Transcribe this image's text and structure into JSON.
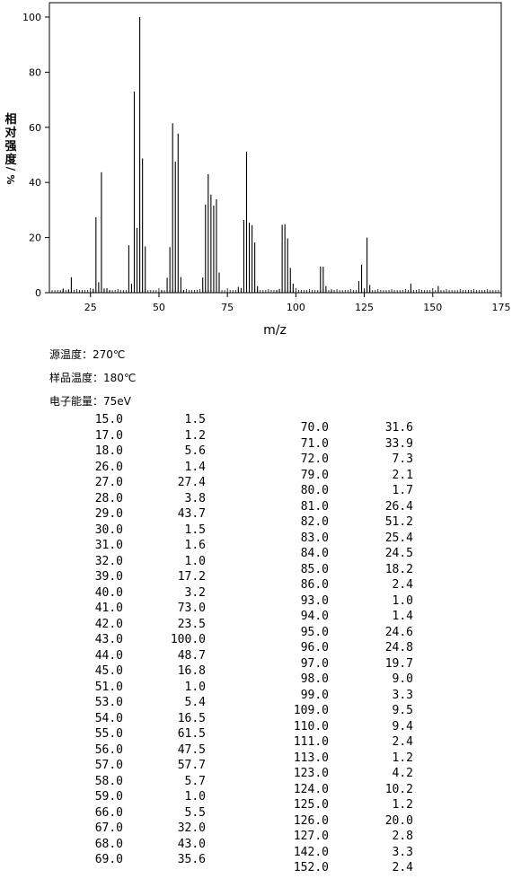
{
  "chart_data": {
    "type": "bar",
    "xlabel": "m/z",
    "ylabel": [
      "相",
      "对",
      "强",
      "度",
      "%"
    ],
    "ylabel_sep": "/",
    "xlim": [
      10,
      175
    ],
    "ylim": [
      0,
      100
    ],
    "xticks": [
      25,
      50,
      75,
      100,
      125,
      150,
      175
    ],
    "yticks": [
      0,
      20,
      40,
      60,
      80,
      100
    ],
    "x": [
      15,
      17,
      18,
      26,
      27,
      28,
      29,
      30,
      31,
      32,
      39,
      40,
      41,
      42,
      43,
      44,
      45,
      51,
      53,
      54,
      55,
      56,
      57,
      58,
      59,
      66,
      67,
      68,
      69,
      70,
      71,
      72,
      79,
      80,
      81,
      82,
      83,
      84,
      85,
      86,
      93,
      94,
      95,
      96,
      97,
      98,
      99,
      109,
      110,
      111,
      113,
      123,
      124,
      125,
      126,
      127,
      142,
      152
    ],
    "values": [
      1.5,
      1.2,
      5.6,
      1.4,
      27.4,
      3.8,
      43.7,
      1.5,
      1.6,
      1.0,
      17.2,
      3.2,
      73.0,
      23.5,
      100.0,
      48.7,
      16.8,
      1.0,
      5.4,
      16.5,
      61.5,
      47.5,
      57.7,
      5.7,
      1.0,
      5.5,
      32.0,
      43.0,
      35.6,
      31.6,
      33.9,
      7.3,
      2.1,
      1.7,
      26.4,
      51.2,
      25.4,
      24.5,
      18.2,
      2.4,
      1.0,
      1.4,
      24.6,
      24.8,
      19.7,
      9.0,
      3.3,
      9.5,
      9.4,
      2.4,
      1.2,
      4.2,
      10.2,
      1.2,
      20.0,
      2.8,
      3.3,
      2.4
    ]
  },
  "conditions": [
    {
      "label": "源温度：",
      "value": "270℃"
    },
    {
      "label": "样品温度：",
      "value": "180℃"
    },
    {
      "label": "电子能量：",
      "value": "75eV"
    }
  ],
  "peak_table": {
    "left": [
      [
        "15.0",
        "1.5"
      ],
      [
        "17.0",
        "1.2"
      ],
      [
        "18.0",
        "5.6"
      ],
      [
        "26.0",
        "1.4"
      ],
      [
        "27.0",
        "27.4"
      ],
      [
        "28.0",
        "3.8"
      ],
      [
        "29.0",
        "43.7"
      ],
      [
        "30.0",
        "1.5"
      ],
      [
        "31.0",
        "1.6"
      ],
      [
        "32.0",
        "1.0"
      ],
      [
        "39.0",
        "17.2"
      ],
      [
        "40.0",
        "3.2"
      ],
      [
        "41.0",
        "73.0"
      ],
      [
        "42.0",
        "23.5"
      ],
      [
        "43.0",
        "100.0"
      ],
      [
        "44.0",
        "48.7"
      ],
      [
        "45.0",
        "16.8"
      ],
      [
        "51.0",
        "1.0"
      ],
      [
        "53.0",
        "5.4"
      ],
      [
        "54.0",
        "16.5"
      ],
      [
        "55.0",
        "61.5"
      ],
      [
        "56.0",
        "47.5"
      ],
      [
        "57.0",
        "57.7"
      ],
      [
        "58.0",
        "5.7"
      ],
      [
        "59.0",
        "1.0"
      ],
      [
        "66.0",
        "5.5"
      ],
      [
        "67.0",
        "32.0"
      ],
      [
        "68.0",
        "43.0"
      ],
      [
        "69.0",
        "35.6"
      ]
    ],
    "right": [
      [
        "70.0",
        "31.6"
      ],
      [
        "71.0",
        "33.9"
      ],
      [
        "72.0",
        "7.3"
      ],
      [
        "79.0",
        "2.1"
      ],
      [
        "80.0",
        "1.7"
      ],
      [
        "81.0",
        "26.4"
      ],
      [
        "82.0",
        "51.2"
      ],
      [
        "83.0",
        "25.4"
      ],
      [
        "84.0",
        "24.5"
      ],
      [
        "85.0",
        "18.2"
      ],
      [
        "86.0",
        "2.4"
      ],
      [
        "93.0",
        "1.0"
      ],
      [
        "94.0",
        "1.4"
      ],
      [
        "95.0",
        "24.6"
      ],
      [
        "96.0",
        "24.8"
      ],
      [
        "97.0",
        "19.7"
      ],
      [
        "98.0",
        "9.0"
      ],
      [
        "99.0",
        "3.3"
      ],
      [
        "109.0",
        "9.5"
      ],
      [
        "110.0",
        "9.4"
      ],
      [
        "111.0",
        "2.4"
      ],
      [
        "113.0",
        "1.2"
      ],
      [
        "123.0",
        "4.2"
      ],
      [
        "124.0",
        "10.2"
      ],
      [
        "125.0",
        "1.2"
      ],
      [
        "126.0",
        "20.0"
      ],
      [
        "127.0",
        "2.8"
      ],
      [
        "142.0",
        "3.3"
      ],
      [
        "152.0",
        "2.4"
      ]
    ]
  }
}
